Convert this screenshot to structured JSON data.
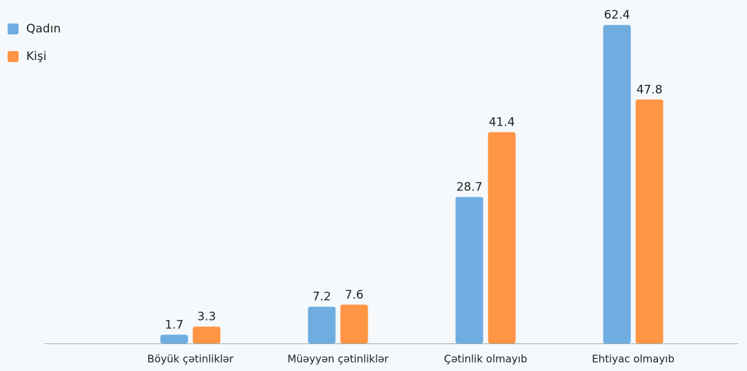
{
  "chart_data": {
    "type": "bar",
    "categories": [
      "Böyük çətinliklər",
      "Müəyyən çətinliklər",
      "Çətinlik olmayıb",
      "Ehtiyac olmayıb"
    ],
    "series": [
      {
        "name": "Qadın",
        "color": "#6fade0",
        "values": [
          1.7,
          7.2,
          28.7,
          62.4
        ]
      },
      {
        "name": "Kişi",
        "color": "#ff9545",
        "values": [
          3.3,
          7.6,
          41.4,
          47.8
        ]
      }
    ],
    "ylim": [
      0,
      65
    ],
    "legend": "top-left"
  }
}
